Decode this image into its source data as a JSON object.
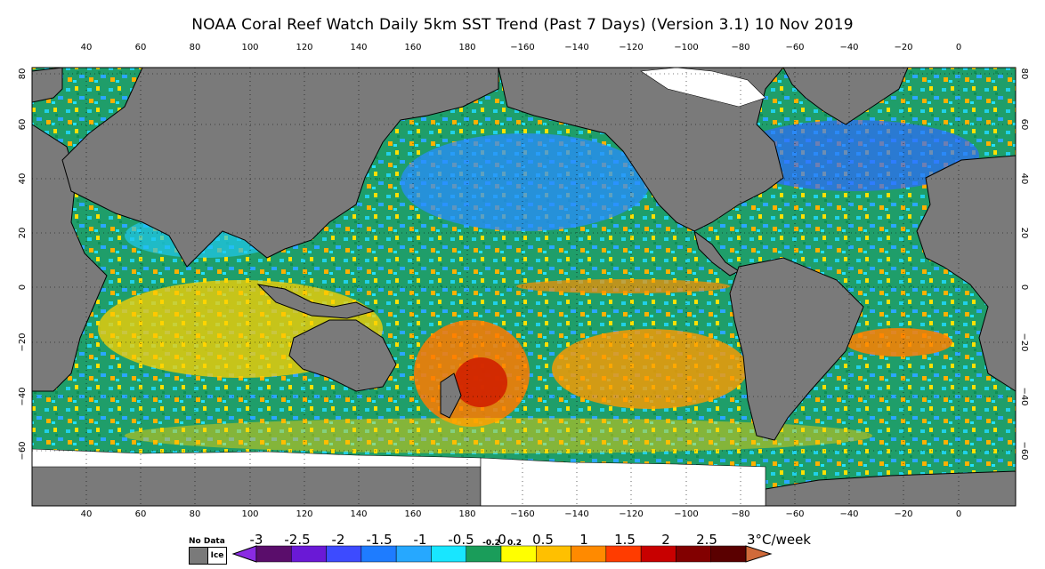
{
  "title": "NOAA Coral Reef Watch Daily 5km SST Trend (Past 7 Days) (Version 3.1)  10 Nov 2019",
  "lon_ticks": [
    "40",
    "60",
    "80",
    "100",
    "120",
    "140",
    "160",
    "180",
    "−160",
    "−140",
    "−120",
    "−100",
    "−80",
    "−60",
    "−40",
    "−20",
    "0"
  ],
  "lat_ticks": [
    "80",
    "60",
    "40",
    "20",
    "0",
    "−20",
    "−40",
    "−60"
  ],
  "legend": {
    "no_data": "No Data",
    "ice": "Ice",
    "labels": [
      "-3",
      "-2.5",
      "-2",
      "-1.5",
      "-1",
      "-0.5",
      "-0.2",
      "0",
      "0.2",
      "0.5",
      "1",
      "1.5",
      "2",
      "2.5",
      "3°C/week"
    ],
    "colors": [
      "#8a2be2",
      "#5a0d6b",
      "#6a19d6",
      "#3d4bff",
      "#1e7cff",
      "#26a8ff",
      "#18e6ff",
      "#1a9d5a",
      "#ffff00",
      "#ffc000",
      "#ff8a00",
      "#ff3c00",
      "#c80000",
      "#820000",
      "#5a0000",
      "#d06a3a"
    ]
  }
}
